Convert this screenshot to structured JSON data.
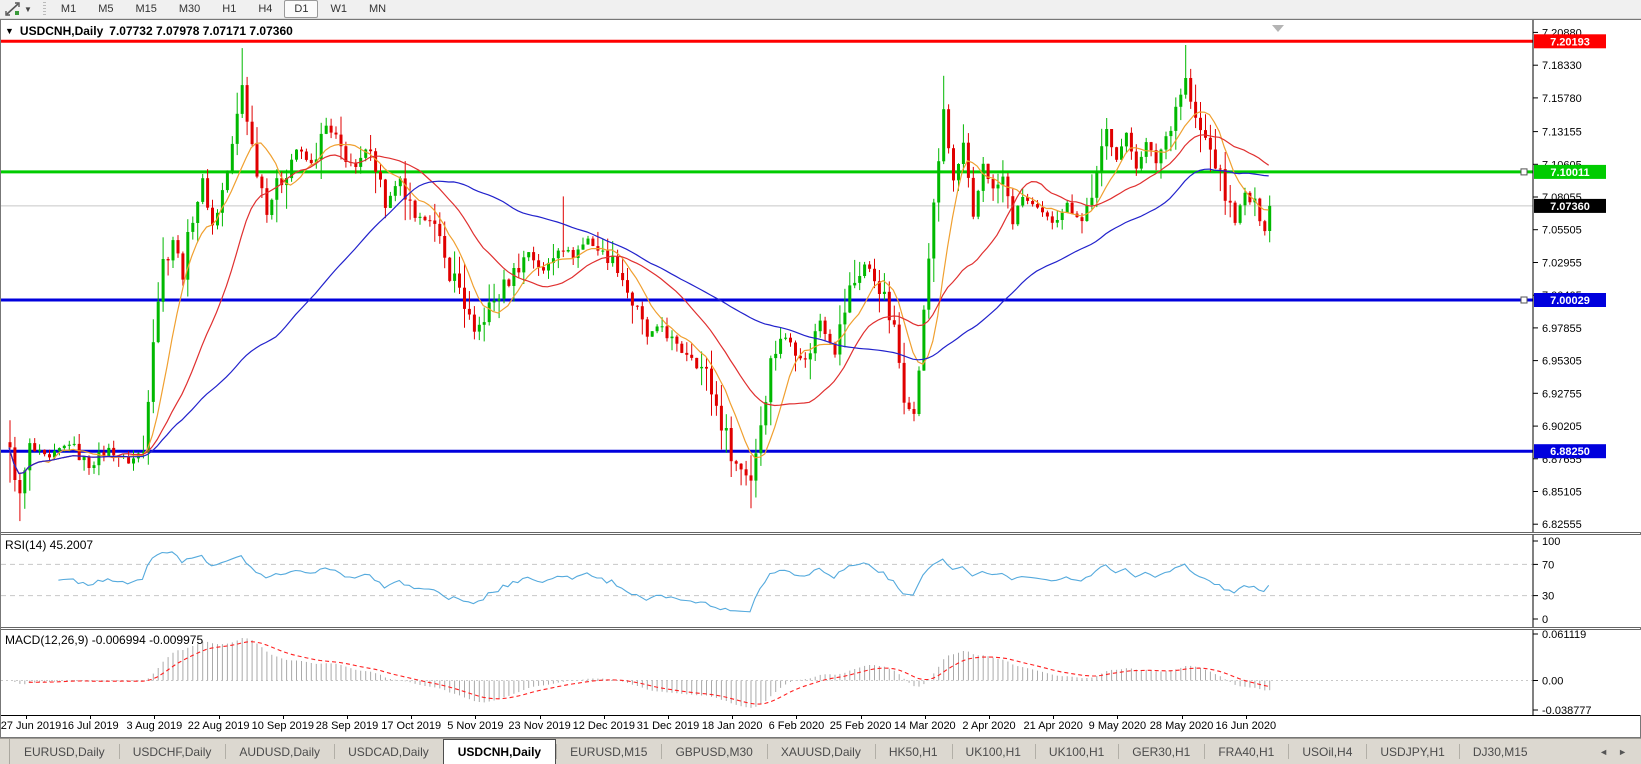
{
  "toolbar": {
    "timeframes": [
      "M1",
      "M5",
      "M15",
      "M30",
      "H1",
      "H4",
      "D1",
      "W1",
      "MN"
    ],
    "active_timeframe": "D1"
  },
  "window": {
    "title_symbol": "USDCNH,Daily",
    "quote": "7.07732 7.07978 7.07171 7.07360"
  },
  "chart_data": [
    {
      "type": "candlestick",
      "title": "USDCNH,Daily",
      "ohlc_display": {
        "open": "7.07732",
        "high": "7.07978",
        "low": "7.07171",
        "close": "7.07360"
      },
      "ylim": [
        6.8195,
        7.2185
      ],
      "y_ticks": [
        "7.20880",
        "7.18330",
        "7.15780",
        "7.13155",
        "7.10605",
        "7.08055",
        "7.05505",
        "7.02955",
        "7.00405",
        "6.97855",
        "6.95305",
        "6.92755",
        "6.90205",
        "6.87655",
        "6.85105",
        "6.82555"
      ],
      "x_labels": [
        "27 Jun 2019",
        "16 Jul 2019",
        "3 Aug 2019",
        "22 Aug 2019",
        "10 Sep 2019",
        "28 Sep 2019",
        "17 Oct 2019",
        "5 Nov 2019",
        "23 Nov 2019",
        "12 Dec 2019",
        "31 Dec 2019",
        "18 Jan 2020",
        "6 Feb 2020",
        "25 Feb 2020",
        "14 Mar 2020",
        "2 Apr 2020",
        "21 Apr 2020",
        "9 May 2020",
        "28 May 2020",
        "16 Jun 2020"
      ],
      "horizontal_lines": [
        {
          "price": 7.20193,
          "label": "7.20193",
          "color": "#ff0000",
          "width": 3,
          "handle": false
        },
        {
          "price": 7.10011,
          "label": "7.10011",
          "color": "#00cc00",
          "width": 3,
          "handle": true
        },
        {
          "price": 7.00029,
          "label": "7.00029",
          "color": "#0000dd",
          "width": 3,
          "handle": true
        },
        {
          "price": 6.8825,
          "label": "6.88250",
          "color": "#0000dd",
          "width": 3,
          "handle": false
        }
      ],
      "current_price": {
        "price": 7.0736,
        "label": "7.07360",
        "line_color": "#c8c8c8",
        "badge_bg": "#000000"
      },
      "up_color": "#00b800",
      "down_color": "#e00000",
      "moving_averages": [
        {
          "name": "fast-ma",
          "period": 8,
          "color": "#f0a030"
        },
        {
          "name": "medium-ma",
          "period": 21,
          "color": "#e03030"
        },
        {
          "name": "slow-ma",
          "period": 55,
          "color": "#2222cc"
        }
      ],
      "bars": 256,
      "close_keyframes": [
        [
          0,
          6.88
        ],
        [
          2,
          6.848
        ],
        [
          4,
          6.884
        ],
        [
          8,
          6.876
        ],
        [
          12,
          6.889
        ],
        [
          16,
          6.871
        ],
        [
          20,
          6.884
        ],
        [
          24,
          6.874
        ],
        [
          27,
          6.882
        ],
        [
          29,
          6.975
        ],
        [
          31,
          7.03
        ],
        [
          33,
          7.048
        ],
        [
          35,
          7.022
        ],
        [
          37,
          7.068
        ],
        [
          39,
          7.092
        ],
        [
          41,
          7.058
        ],
        [
          43,
          7.085
        ],
        [
          45,
          7.118
        ],
        [
          47,
          7.168
        ],
        [
          49,
          7.12
        ],
        [
          52,
          7.072
        ],
        [
          55,
          7.095
        ],
        [
          58,
          7.118
        ],
        [
          61,
          7.105
        ],
        [
          64,
          7.135
        ],
        [
          67,
          7.118
        ],
        [
          70,
          7.102
        ],
        [
          73,
          7.122
        ],
        [
          76,
          7.075
        ],
        [
          79,
          7.092
        ],
        [
          82,
          7.06
        ],
        [
          85,
          7.068
        ],
        [
          88,
          7.03
        ],
        [
          91,
          7.01
        ],
        [
          94,
          6.972
        ],
        [
          96,
          6.988
        ],
        [
          99,
          7.005
        ],
        [
          102,
          7.022
        ],
        [
          105,
          7.038
        ],
        [
          108,
          7.022
        ],
        [
          111,
          7.042
        ],
        [
          114,
          7.035
        ],
        [
          117,
          7.048
        ],
        [
          120,
          7.036
        ],
        [
          123,
          7.028
        ],
        [
          126,
          6.998
        ],
        [
          129,
          6.972
        ],
        [
          132,
          6.98
        ],
        [
          135,
          6.962
        ],
        [
          138,
          6.958
        ],
        [
          141,
          6.942
        ],
        [
          144,
          6.905
        ],
        [
          147,
          6.872
        ],
        [
          150,
          6.862
        ],
        [
          152,
          6.905
        ],
        [
          154,
          6.952
        ],
        [
          156,
          6.972
        ],
        [
          158,
          6.968
        ],
        [
          161,
          6.952
        ],
        [
          164,
          6.985
        ],
        [
          167,
          6.962
        ],
        [
          170,
          7.008
        ],
        [
          173,
          7.028
        ],
        [
          176,
          7.012
        ],
        [
          179,
          6.975
        ],
        [
          181,
          6.928
        ],
        [
          183,
          6.908
        ],
        [
          185,
          6.988
        ],
        [
          187,
          7.078
        ],
        [
          189,
          7.145
        ],
        [
          191,
          7.092
        ],
        [
          193,
          7.118
        ],
        [
          195,
          7.062
        ],
        [
          197,
          7.108
        ],
        [
          199,
          7.085
        ],
        [
          201,
          7.095
        ],
        [
          203,
          7.062
        ],
        [
          205,
          7.082
        ],
        [
          208,
          7.068
        ],
        [
          211,
          7.062
        ],
        [
          214,
          7.075
        ],
        [
          217,
          7.062
        ],
        [
          220,
          7.095
        ],
        [
          222,
          7.132
        ],
        [
          224,
          7.112
        ],
        [
          226,
          7.128
        ],
        [
          228,
          7.105
        ],
        [
          230,
          7.122
        ],
        [
          232,
          7.108
        ],
        [
          234,
          7.128
        ],
        [
          236,
          7.152
        ],
        [
          238,
          7.172
        ],
        [
          240,
          7.138
        ],
        [
          242,
          7.125
        ],
        [
          244,
          7.108
        ],
        [
          246,
          7.082
        ],
        [
          248,
          7.062
        ],
        [
          250,
          7.082
        ],
        [
          252,
          7.072
        ],
        [
          254,
          7.056
        ],
        [
          255,
          7.0736
        ]
      ],
      "wick_overrides": [
        [
          0,
          "low",
          6.858
        ],
        [
          2,
          "low",
          6.828
        ],
        [
          47,
          "high",
          7.1966
        ],
        [
          112,
          "high",
          7.081
        ],
        [
          150,
          "low",
          6.838
        ],
        [
          189,
          "high",
          7.175
        ],
        [
          238,
          "high",
          7.199
        ]
      ]
    },
    {
      "type": "line",
      "indicator": "RSI",
      "params": "14",
      "value": "45.2007",
      "label": "RSI(14) 45.2007",
      "y_ticks": [
        "100",
        "70",
        "30",
        "0"
      ],
      "levels": [
        100,
        70,
        30,
        0
      ],
      "dashed_levels": [
        70,
        30
      ],
      "color": "#55aadd",
      "ylim": [
        0,
        100
      ]
    },
    {
      "type": "macd",
      "indicator": "MACD",
      "params": "12,26,9",
      "values": [
        "-0.006994",
        "-0.009975"
      ],
      "label": "MACD(12,26,9) -0.006994 -0.009975",
      "y_ticks": [
        "0.061119",
        "0.00",
        "-0.038777"
      ],
      "ylim": [
        -0.038777,
        0.061119
      ],
      "histogram_color": "#aaaaaa",
      "signal_color": "#ff2020",
      "signal_style": "dashed"
    }
  ],
  "tab_bar": {
    "tabs": [
      "EURUSD,Daily",
      "USDCHF,Daily",
      "AUDUSD,Daily",
      "USDCAD,Daily",
      "USDCNH,Daily",
      "EURUSD,M15",
      "GBPUSD,M30",
      "XAUUSD,Daily",
      "HK50,H1",
      "UK100,H1",
      "UK100,H1",
      "GER30,H1",
      "FRA40,H1",
      "USOil,H4",
      "USDJPY,H1",
      "DJ30,M15"
    ],
    "active_tab": "USDCNH,Daily",
    "scroll_left_icon": "◄",
    "scroll_right_icon": "►"
  }
}
